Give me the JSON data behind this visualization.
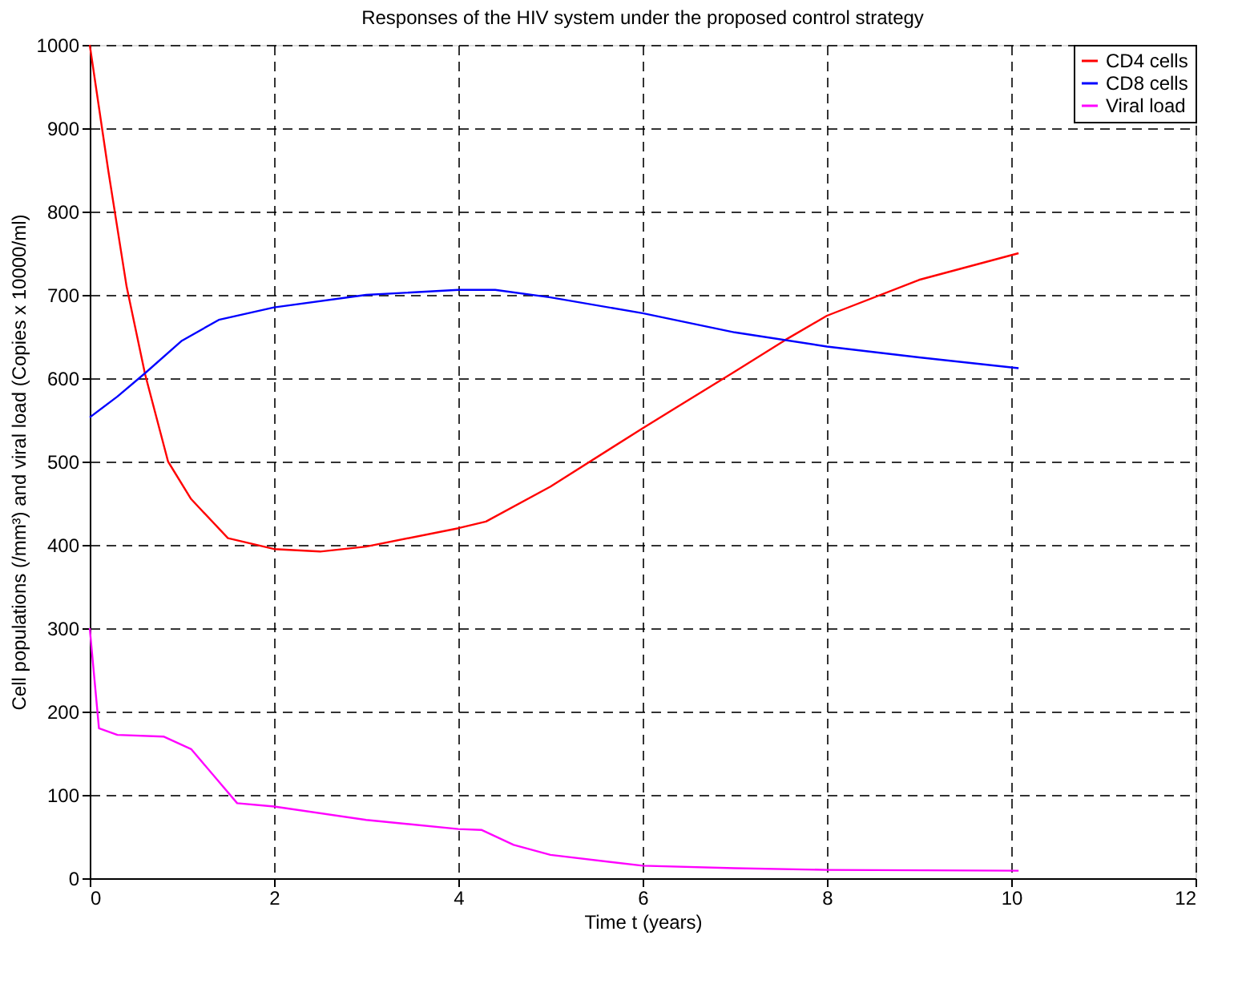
{
  "chart_data": {
    "type": "line",
    "title": "Responses of the HIV system under the proposed control strategy",
    "xlabel": "Time t (years)",
    "ylabel": "Cell populations (/mm³) and viral load (Copies x 10000/ml)",
    "xlim": [
      0,
      12
    ],
    "xticks": [
      0,
      2,
      4,
      6,
      8,
      10,
      12
    ],
    "ylim": [
      0,
      1000
    ],
    "yticks": [
      0,
      100,
      200,
      300,
      400,
      500,
      600,
      700,
      800,
      900,
      1000
    ],
    "grid": true,
    "legend": "top right",
    "line_style": "solid",
    "marker": "none",
    "series": [
      {
        "name": "CD4 cells",
        "color": "#ff0000",
        "x": [
          0,
          0.2,
          0.4,
          0.6,
          0.85,
          1.1,
          1.5,
          2,
          2.5,
          3,
          4,
          4.3,
          5,
          6,
          7,
          7.55,
          8,
          9,
          10.08
        ],
        "values": [
          1000,
          850,
          710,
          605,
          500,
          455,
          408,
          395,
          392,
          398,
          420,
          428,
          470,
          540,
          608,
          646,
          675,
          718,
          750
        ]
      },
      {
        "name": "CD8 cells",
        "color": "#0000ff",
        "x": [
          0,
          0.3,
          0.6,
          1,
          1.4,
          2,
          3,
          4,
          4.4,
          5,
          6,
          7,
          8,
          9,
          10.08
        ],
        "values": [
          553,
          578,
          606,
          645,
          670,
          685,
          700,
          706,
          706,
          697,
          678,
          655,
          638,
          625,
          612
        ]
      },
      {
        "name": "Viral load",
        "color": "#ff00ff",
        "x": [
          0,
          0.05,
          0.1,
          0.3,
          0.8,
          1.1,
          1.6,
          2,
          3,
          4,
          4.25,
          4.6,
          5,
          6,
          7,
          8,
          10.08
        ],
        "values": [
          300,
          240,
          180,
          172,
          170,
          155,
          90,
          86,
          70,
          59,
          58,
          40,
          28,
          15,
          12,
          10,
          9
        ]
      }
    ]
  }
}
